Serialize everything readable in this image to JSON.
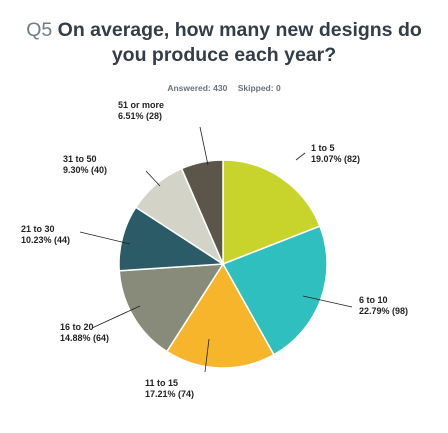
{
  "question": {
    "number": "Q5",
    "text_line1": "On average, how many new designs do",
    "text_line2": "you produce each year?"
  },
  "summary": {
    "answered": "Answered: 430",
    "skipped": "Skipped: 0"
  },
  "chart_data": {
    "type": "pie",
    "start_angle_deg": 0,
    "direction": "clockwise",
    "slices": [
      {
        "label": "1 to 5",
        "value": 19.07,
        "count": 82,
        "text": "19.07% (82)",
        "color": "#c8d42c"
      },
      {
        "label": "6 to 10",
        "value": 22.79,
        "count": 98,
        "text": "22.79% (98)",
        "color": "#2fbfbf"
      },
      {
        "label": "11 to 15",
        "value": 17.21,
        "count": 74,
        "text": "17.21% (74)",
        "color": "#f7b52c"
      },
      {
        "label": "16 to 20",
        "value": 14.88,
        "count": 64,
        "text": "14.88% (64)",
        "color": "#888b7a"
      },
      {
        "label": "21 to 30",
        "value": 10.23,
        "count": 44,
        "text": "10.23% (44)",
        "color": "#2a5b66"
      },
      {
        "label": "31 to 50",
        "value": 9.3,
        "count": 40,
        "text": "9.30% (40)",
        "color": "#d3d3c8"
      },
      {
        "label": "51 or more",
        "value": 6.51,
        "count": 28,
        "text": "6.51% (28)",
        "color": "#5c564a"
      }
    ]
  }
}
